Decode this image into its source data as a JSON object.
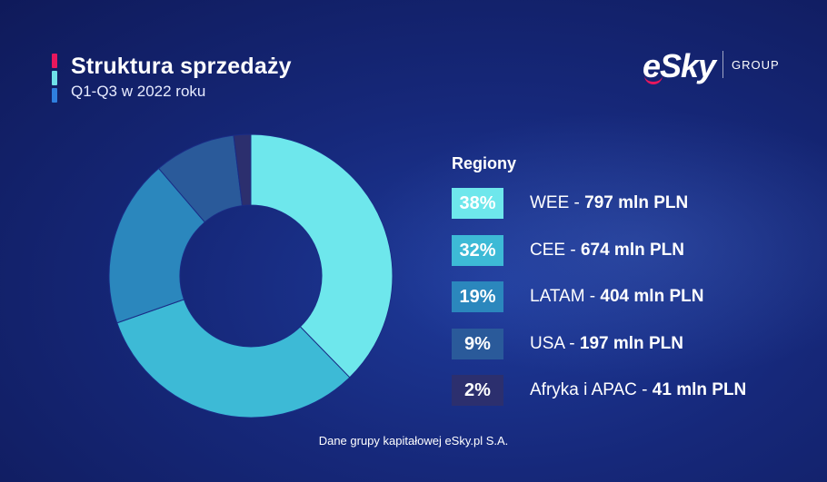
{
  "header": {
    "title": "Struktura sprzedaży",
    "subtitle": "Q1-Q3 w 2022 roku",
    "accent_colors": [
      "#e8175d",
      "#6ee0ea",
      "#2f7fe0"
    ]
  },
  "logo": {
    "brand": "eSky",
    "suffix": "GROUP",
    "swoosh_color": "#e8175d"
  },
  "legend": {
    "title": "Regiony"
  },
  "chart_data": {
    "type": "pie",
    "style": "donut",
    "legend_placement": "right",
    "categories": [
      "WEE",
      "CEE",
      "LATAM",
      "USA",
      "Afryka i APAC"
    ],
    "values": [
      797,
      674,
      404,
      197,
      41
    ],
    "unit": "mln PLN",
    "percent_labels": [
      "38%",
      "32%",
      "19%",
      "9%",
      "2%"
    ],
    "value_labels": [
      "797 mln PLN",
      "674 mln PLN",
      "404 mln PLN",
      "197 mln PLN",
      "41 mln PLN"
    ],
    "colors": [
      "#6ee7ec",
      "#3dbad6",
      "#2b87bd",
      "#2a5a9a",
      "#2c2f6e"
    ],
    "badge_text_colors": [
      "#ffffff",
      "#ffffff",
      "#ffffff",
      "#ffffff",
      "#ffffff"
    ]
  },
  "footer": {
    "note": "Dane grupy kapitałowej eSky.pl S.A."
  }
}
